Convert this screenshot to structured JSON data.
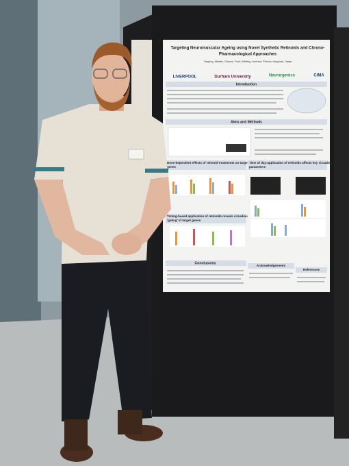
{
  "poster": {
    "title_lines": [
      "Targeting Neuromuscular Ageing using Novel Synthetic Retinoids and Chrono-",
      "Pharmacological Approaches"
    ],
    "authors": "Topping, Alistair; Chazot, Paul; Whiting, Andrew; Pelovic-Vaughan, Vanja",
    "logos": [
      "LIVERPOOL",
      "Durham University",
      "Nevrargenics",
      "CIMA"
    ],
    "sections": {
      "introduction": "Introduction",
      "aims": "Aims and Methods",
      "dose": [
        "Dose-dependent effects of retinoid treatments on target",
        "genes"
      ],
      "time": [
        "Time of day-application of retinoids affects key circadian",
        "parameters"
      ],
      "timing": [
        "Timing-based application of retinoids reveals circadian",
        "'gating' of target genes"
      ],
      "conclusions": "Conclusions",
      "acknowledgements": "Acknowledgements",
      "references": "References"
    }
  }
}
